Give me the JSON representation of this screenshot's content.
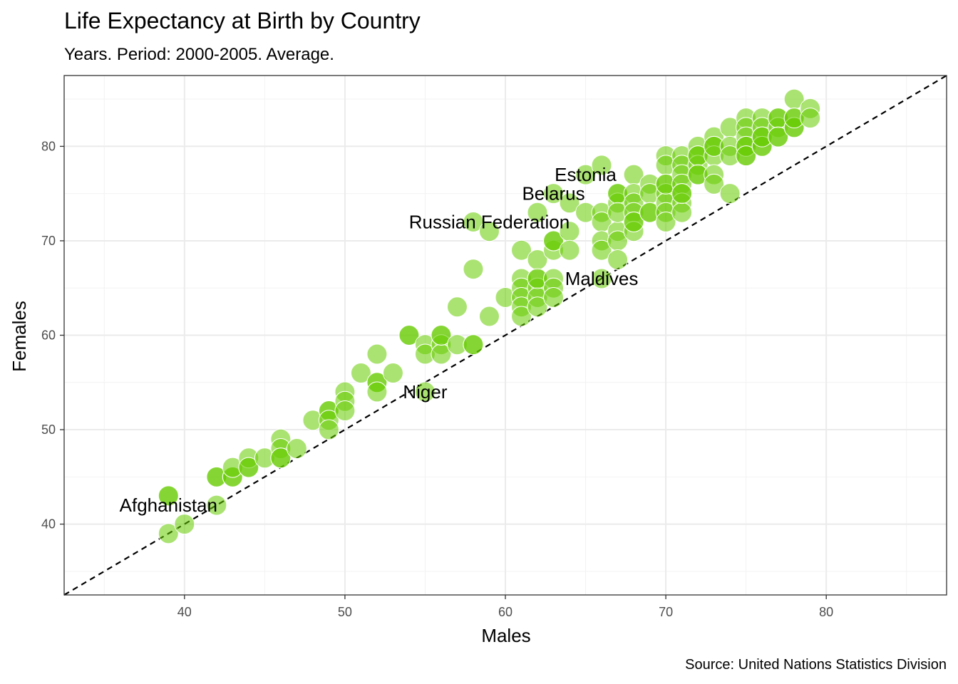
{
  "chart_data": {
    "type": "scatter",
    "title": "Life Expectancy at Birth by Country",
    "subtitle": "Years. Period: 2000-2005. Average.",
    "caption": "Source: United Nations Statistics Division",
    "xlabel": "Males",
    "ylabel": "Females",
    "xlim": [
      32.5,
      87.5
    ],
    "ylim": [
      32.5,
      87.5
    ],
    "x_ticks": [
      40,
      50,
      60,
      70,
      80
    ],
    "y_ticks": [
      40,
      50,
      60,
      70,
      80
    ],
    "grid": true,
    "reference_line": {
      "style": "dashed",
      "slope": 1,
      "intercept": 0
    },
    "point_color": "#66CC00",
    "points": [
      [
        39,
        43
      ],
      [
        39,
        43
      ],
      [
        39,
        39
      ],
      [
        40,
        40
      ],
      [
        42,
        42
      ],
      [
        42,
        45
      ],
      [
        42,
        45
      ],
      [
        43,
        45
      ],
      [
        43,
        45
      ],
      [
        43,
        46
      ],
      [
        44,
        46
      ],
      [
        44,
        47
      ],
      [
        44,
        46
      ],
      [
        45,
        47
      ],
      [
        46,
        49
      ],
      [
        46,
        48
      ],
      [
        46,
        47
      ],
      [
        46,
        47
      ],
      [
        47,
        48
      ],
      [
        48,
        51
      ],
      [
        49,
        52
      ],
      [
        49,
        52
      ],
      [
        49,
        51
      ],
      [
        49,
        50
      ],
      [
        50,
        54
      ],
      [
        50,
        53
      ],
      [
        50,
        52
      ],
      [
        51,
        56
      ],
      [
        52,
        58
      ],
      [
        52,
        55
      ],
      [
        52,
        55
      ],
      [
        52,
        54
      ],
      [
        53,
        56
      ],
      [
        54,
        60
      ],
      [
        54,
        60
      ],
      [
        55,
        59
      ],
      [
        55,
        58
      ],
      [
        55,
        54
      ],
      [
        56,
        60
      ],
      [
        56,
        59
      ],
      [
        56,
        58
      ],
      [
        56,
        60
      ],
      [
        57,
        59
      ],
      [
        57,
        63
      ],
      [
        58,
        59
      ],
      [
        58,
        59
      ],
      [
        58,
        67
      ],
      [
        58,
        72
      ],
      [
        59,
        71
      ],
      [
        59,
        62
      ],
      [
        60,
        64
      ],
      [
        61,
        69
      ],
      [
        61,
        66
      ],
      [
        61,
        65
      ],
      [
        61,
        64
      ],
      [
        61,
        63
      ],
      [
        61,
        62
      ],
      [
        62,
        66
      ],
      [
        62,
        65
      ],
      [
        62,
        64
      ],
      [
        62,
        63
      ],
      [
        62,
        68
      ],
      [
        62,
        73
      ],
      [
        62,
        66
      ],
      [
        63,
        69
      ],
      [
        63,
        70
      ],
      [
        63,
        70
      ],
      [
        63,
        66
      ],
      [
        63,
        65
      ],
      [
        63,
        64
      ],
      [
        63,
        75
      ],
      [
        64,
        71
      ],
      [
        64,
        69
      ],
      [
        64,
        74
      ],
      [
        65,
        73
      ],
      [
        65,
        77
      ],
      [
        66,
        78
      ],
      [
        66,
        73
      ],
      [
        66,
        72
      ],
      [
        66,
        70
      ],
      [
        66,
        69
      ],
      [
        66,
        66
      ],
      [
        67,
        75
      ],
      [
        67,
        74
      ],
      [
        67,
        71
      ],
      [
        67,
        70
      ],
      [
        67,
        68
      ],
      [
        67,
        75
      ],
      [
        67,
        73
      ],
      [
        68,
        77
      ],
      [
        68,
        75
      ],
      [
        68,
        74
      ],
      [
        68,
        73
      ],
      [
        68,
        72
      ],
      [
        68,
        71
      ],
      [
        68,
        72
      ],
      [
        69,
        76
      ],
      [
        69,
        75
      ],
      [
        69,
        73
      ],
      [
        69,
        73
      ],
      [
        70,
        79
      ],
      [
        70,
        78
      ],
      [
        70,
        76
      ],
      [
        70,
        75
      ],
      [
        70,
        74
      ],
      [
        70,
        73
      ],
      [
        70,
        72
      ],
      [
        70,
        76
      ],
      [
        71,
        79
      ],
      [
        71,
        78
      ],
      [
        71,
        77
      ],
      [
        71,
        76
      ],
      [
        71,
        75
      ],
      [
        71,
        74
      ],
      [
        71,
        73
      ],
      [
        71,
        75
      ],
      [
        72,
        80
      ],
      [
        72,
        79
      ],
      [
        72,
        78
      ],
      [
        72,
        77
      ],
      [
        72,
        79
      ],
      [
        72,
        77
      ],
      [
        73,
        81
      ],
      [
        73,
        80
      ],
      [
        73,
        79
      ],
      [
        73,
        77
      ],
      [
        73,
        76
      ],
      [
        73,
        80
      ],
      [
        74,
        82
      ],
      [
        74,
        80
      ],
      [
        74,
        79
      ],
      [
        74,
        75
      ],
      [
        75,
        83
      ],
      [
        75,
        82
      ],
      [
        75,
        81
      ],
      [
        75,
        80
      ],
      [
        75,
        79
      ],
      [
        75,
        80
      ],
      [
        75,
        79
      ],
      [
        76,
        83
      ],
      [
        76,
        82
      ],
      [
        76,
        81
      ],
      [
        76,
        80
      ],
      [
        76,
        80
      ],
      [
        76,
        81
      ],
      [
        77,
        83
      ],
      [
        77,
        82
      ],
      [
        77,
        81
      ],
      [
        77,
        83
      ],
      [
        77,
        81
      ],
      [
        78,
        85
      ],
      [
        78,
        83
      ],
      [
        78,
        82
      ],
      [
        78,
        82
      ],
      [
        78,
        83
      ],
      [
        79,
        84
      ],
      [
        79,
        83
      ]
    ],
    "labels": [
      {
        "text": "Afghanistan",
        "x": 39,
        "y": 42
      },
      {
        "text": "Niger",
        "x": 55,
        "y": 54
      },
      {
        "text": "Maldives",
        "x": 66,
        "y": 66
      },
      {
        "text": "Russian Federation",
        "x": 59,
        "y": 72
      },
      {
        "text": "Belarus",
        "x": 63,
        "y": 75
      },
      {
        "text": "Estonia",
        "x": 65,
        "y": 77
      }
    ]
  }
}
